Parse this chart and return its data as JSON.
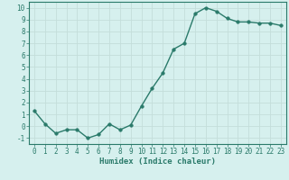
{
  "x": [
    0,
    1,
    2,
    3,
    4,
    5,
    6,
    7,
    8,
    9,
    10,
    11,
    12,
    13,
    14,
    15,
    16,
    17,
    18,
    19,
    20,
    21,
    22,
    23
  ],
  "y": [
    1.3,
    0.2,
    -0.6,
    -0.3,
    -0.3,
    -1.0,
    -0.7,
    0.2,
    -0.3,
    0.1,
    1.7,
    3.2,
    4.5,
    6.5,
    7.0,
    9.5,
    10.0,
    9.7,
    9.1,
    8.8,
    8.8,
    8.7,
    8.7,
    8.5
  ],
  "line_color": "#2a7a6a",
  "marker": "o",
  "markersize": 2.5,
  "linewidth": 1.0,
  "xlabel": "Humidex (Indice chaleur)",
  "xlim": [
    -0.5,
    23.5
  ],
  "ylim": [
    -1.5,
    10.5
  ],
  "yticks": [
    -1,
    0,
    1,
    2,
    3,
    4,
    5,
    6,
    7,
    8,
    9,
    10
  ],
  "xticks": [
    0,
    1,
    2,
    3,
    4,
    5,
    6,
    7,
    8,
    9,
    10,
    11,
    12,
    13,
    14,
    15,
    16,
    17,
    18,
    19,
    20,
    21,
    22,
    23
  ],
  "background_color": "#d6f0ee",
  "grid_color": "#c4deda",
  "font_color": "#2a7a6a",
  "xlabel_fontsize": 6.5,
  "tick_fontsize": 5.5
}
